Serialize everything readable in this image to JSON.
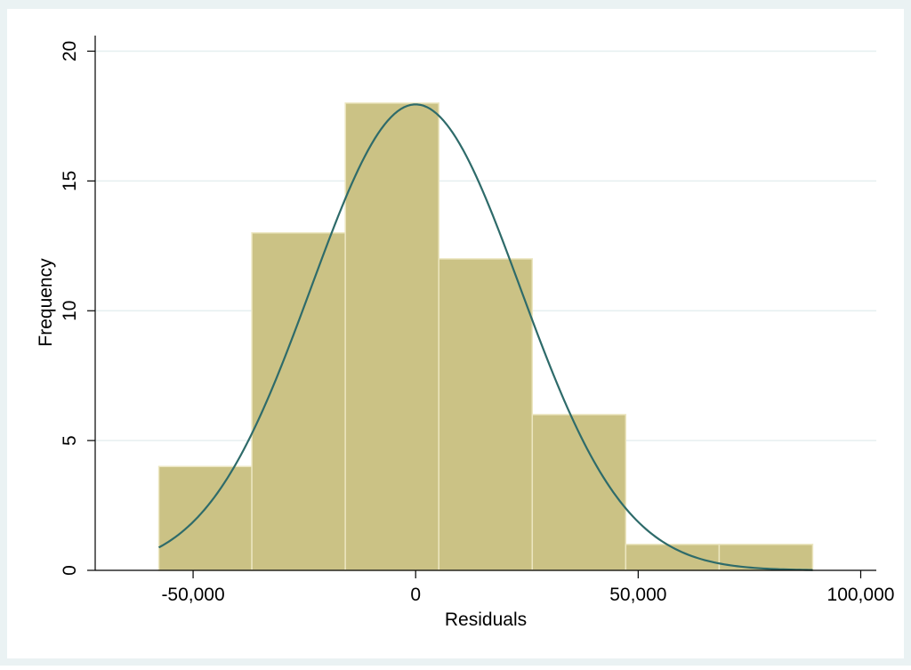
{
  "chart_data": {
    "type": "bar",
    "subtype": "histogram",
    "xlabel": "Residuals",
    "ylabel": "Frequency",
    "xlim": [
      -72000,
      103500
    ],
    "ylim": [
      0,
      20.6
    ],
    "x_ticks": [
      {
        "value": -50000,
        "label": "-50,000"
      },
      {
        "value": 0,
        "label": "0"
      },
      {
        "value": 50000,
        "label": "50,000"
      },
      {
        "value": 100000,
        "label": "100,000"
      }
    ],
    "y_ticks": [
      {
        "value": 0,
        "label": "0"
      },
      {
        "value": 5,
        "label": "5"
      },
      {
        "value": 10,
        "label": "10"
      },
      {
        "value": 15,
        "label": "15"
      },
      {
        "value": 20,
        "label": "20"
      }
    ],
    "bins": [
      {
        "start": -57700,
        "end": -36800,
        "count": 4
      },
      {
        "start": -36800,
        "end": -15800,
        "count": 13
      },
      {
        "start": -15800,
        "end": 5200,
        "count": 18
      },
      {
        "start": 5200,
        "end": 26200,
        "count": 12
      },
      {
        "start": 26200,
        "end": 47200,
        "count": 6
      },
      {
        "start": 47200,
        "end": 68200,
        "count": 1
      },
      {
        "start": 68200,
        "end": 89200,
        "count": 1
      }
    ],
    "normal_curve": {
      "mean": 0,
      "sd": 23500,
      "peak": 17.95,
      "x_range": [
        -57700,
        89200
      ]
    },
    "grid": true,
    "legend": "none",
    "colors": {
      "outer_background": "#eaf2f3",
      "plot_background": "#ffffff",
      "bar_fill": "#cbc285",
      "bar_edge": "#ece6c0",
      "curve": "#2e6b6a",
      "gridline": "#e6eff0",
      "axis": "#000000"
    }
  }
}
